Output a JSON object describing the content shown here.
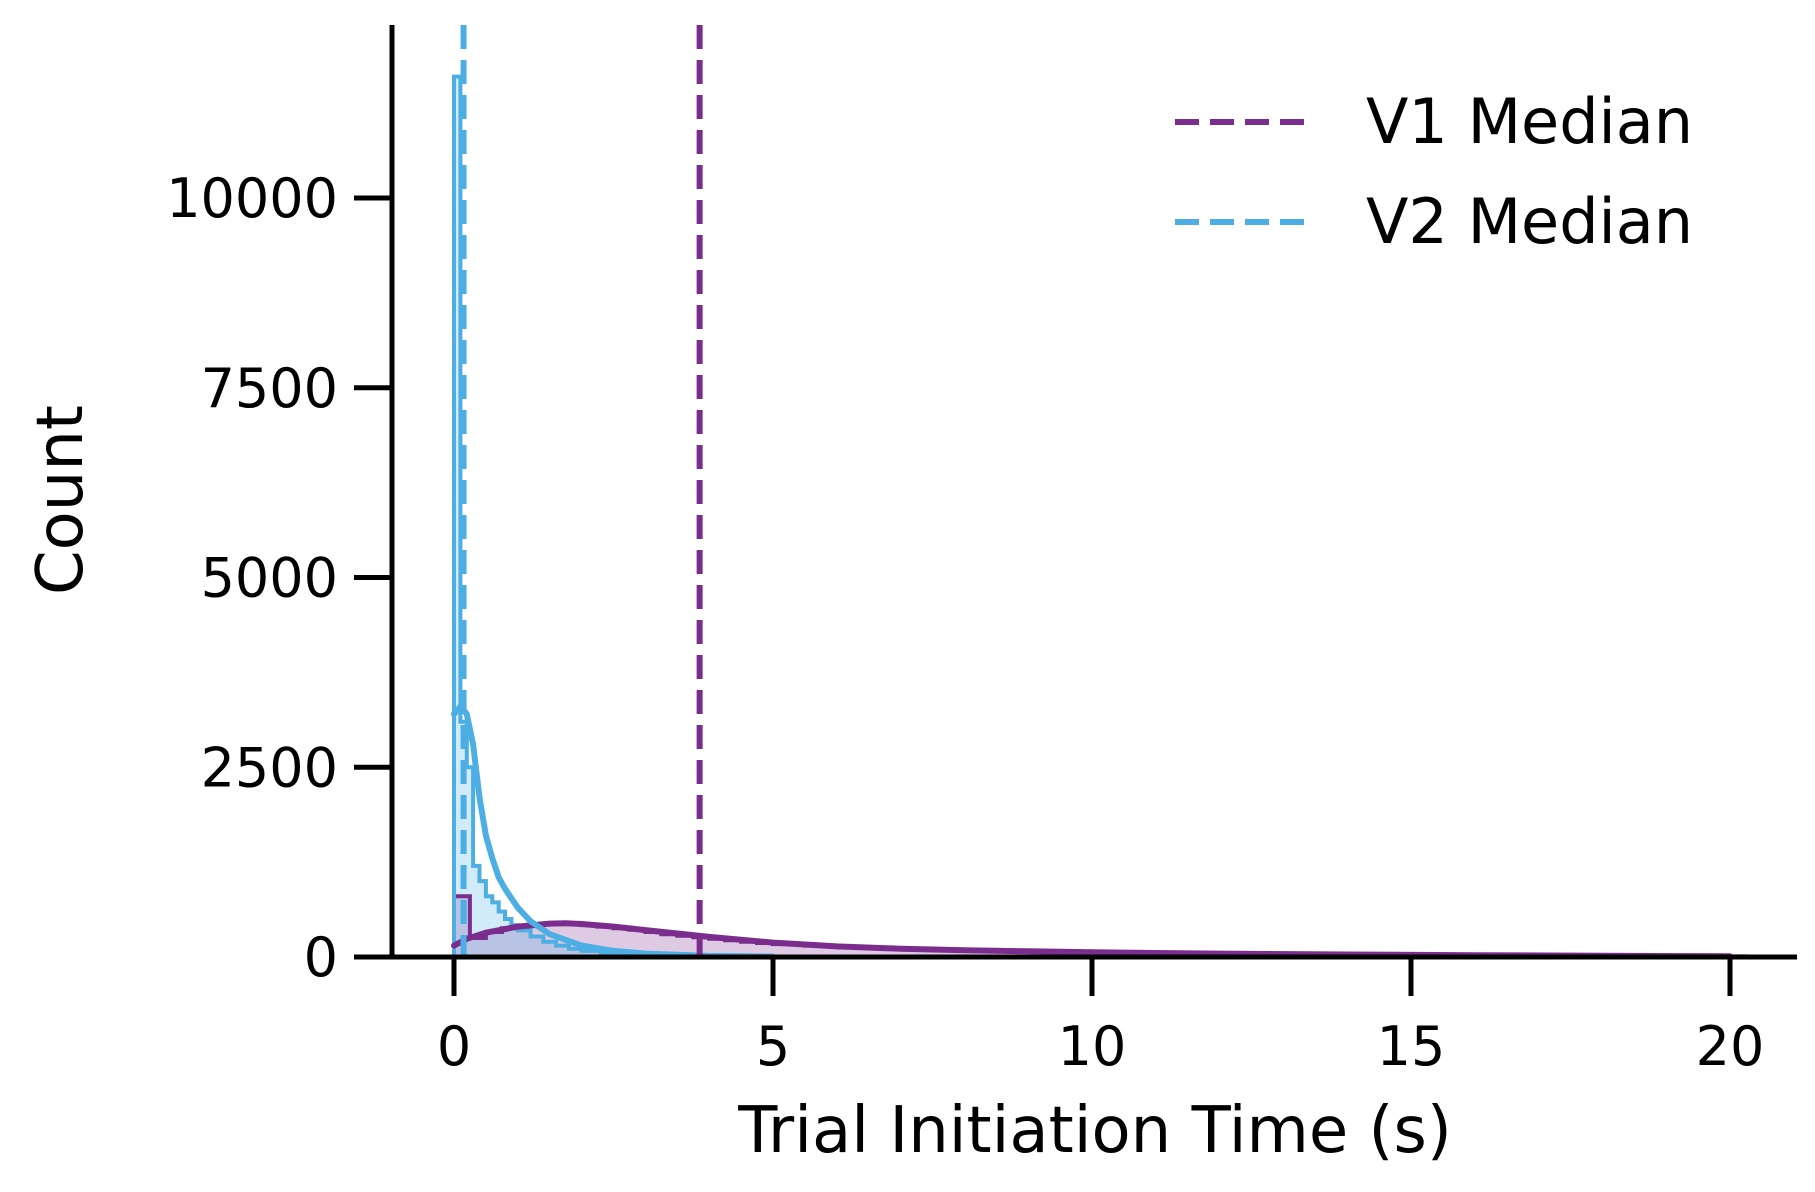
{
  "chart_data": {
    "type": "histogram",
    "xlabel": "Trial Initiation Time (s)",
    "ylabel": "Count",
    "xlim": [
      -1,
      21
    ],
    "ylim": [
      0,
      12000
    ],
    "x_ticks": [
      0,
      5,
      10,
      15,
      20
    ],
    "y_ticks": [
      0,
      2500,
      5000,
      7500,
      10000
    ],
    "grid": false,
    "legend_position": "top-right",
    "series": [
      {
        "name": "V1 Median",
        "color": "#7b2d8e",
        "median": 3.85,
        "bin_width": 0.25,
        "bins": [
          [
            0.0,
            800
          ],
          [
            0.25,
            250
          ],
          [
            0.5,
            330
          ],
          [
            0.75,
            380
          ],
          [
            1.0,
            410
          ],
          [
            1.25,
            430
          ],
          [
            1.5,
            440
          ],
          [
            1.75,
            440
          ],
          [
            2.0,
            420
          ],
          [
            2.25,
            400
          ],
          [
            2.5,
            380
          ],
          [
            2.75,
            360
          ],
          [
            3.0,
            330
          ],
          [
            3.25,
            300
          ],
          [
            3.5,
            280
          ],
          [
            3.75,
            260
          ],
          [
            4.0,
            240
          ],
          [
            4.25,
            220
          ],
          [
            4.5,
            200
          ],
          [
            4.75,
            185
          ],
          [
            5.0,
            170
          ],
          [
            5.5,
            150
          ],
          [
            6.0,
            130
          ],
          [
            6.5,
            115
          ],
          [
            7.0,
            100
          ],
          [
            7.5,
            90
          ],
          [
            8.0,
            80
          ],
          [
            9.0,
            65
          ],
          [
            10.0,
            55
          ],
          [
            11.0,
            45
          ],
          [
            12.0,
            38
          ],
          [
            13.0,
            32
          ],
          [
            14.0,
            27
          ],
          [
            15.0,
            22
          ],
          [
            16.0,
            18
          ],
          [
            17.0,
            15
          ],
          [
            18.0,
            12
          ],
          [
            19.0,
            10
          ],
          [
            20.0,
            8
          ]
        ],
        "kde": [
          [
            0.0,
            150
          ],
          [
            0.2,
            240
          ],
          [
            0.5,
            320
          ],
          [
            1.0,
            400
          ],
          [
            1.5,
            440
          ],
          [
            1.75,
            445
          ],
          [
            2.0,
            435
          ],
          [
            2.5,
            400
          ],
          [
            3.0,
            355
          ],
          [
            3.5,
            310
          ],
          [
            4.0,
            265
          ],
          [
            5.0,
            190
          ],
          [
            6.0,
            140
          ],
          [
            7.0,
            110
          ],
          [
            8.0,
            90
          ],
          [
            9.0,
            75
          ],
          [
            10.0,
            62
          ],
          [
            12.0,
            45
          ],
          [
            14.0,
            33
          ],
          [
            16.0,
            24
          ],
          [
            18.0,
            16
          ],
          [
            20.0,
            10
          ]
        ]
      },
      {
        "name": "V2 Median",
        "color": "#4daee3",
        "median": 0.15,
        "bin_width": 0.1,
        "bins": [
          [
            0.0,
            11600
          ],
          [
            0.1,
            3100
          ],
          [
            0.2,
            2500
          ],
          [
            0.3,
            1200
          ],
          [
            0.4,
            1000
          ],
          [
            0.5,
            800
          ],
          [
            0.6,
            720
          ],
          [
            0.7,
            600
          ],
          [
            0.8,
            500
          ],
          [
            0.9,
            420
          ],
          [
            1.0,
            350
          ],
          [
            1.2,
            270
          ],
          [
            1.4,
            200
          ],
          [
            1.6,
            150
          ],
          [
            1.8,
            110
          ],
          [
            2.0,
            80
          ],
          [
            2.3,
            55
          ],
          [
            2.6,
            40
          ],
          [
            3.0,
            28
          ],
          [
            3.5,
            18
          ],
          [
            4.0,
            10
          ],
          [
            5.0,
            5
          ]
        ],
        "kde": [
          [
            0.0,
            3200
          ],
          [
            0.1,
            3300
          ],
          [
            0.2,
            3200
          ],
          [
            0.3,
            2800
          ],
          [
            0.4,
            2100
          ],
          [
            0.5,
            1600
          ],
          [
            0.6,
            1300
          ],
          [
            0.7,
            1050
          ],
          [
            0.8,
            900
          ],
          [
            1.0,
            650
          ],
          [
            1.2,
            470
          ],
          [
            1.5,
            300
          ],
          [
            2.0,
            150
          ],
          [
            2.5,
            80
          ],
          [
            3.0,
            45
          ],
          [
            4.0,
            15
          ],
          [
            5.0,
            5
          ]
        ]
      }
    ]
  }
}
